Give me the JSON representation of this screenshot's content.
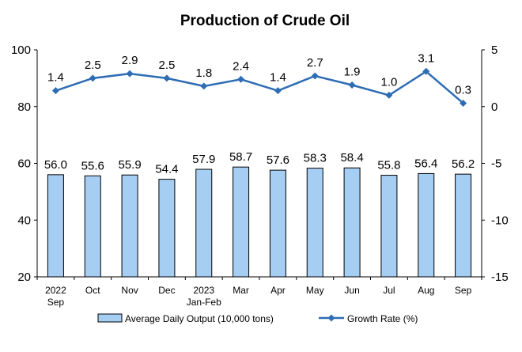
{
  "chart_data": {
    "type": "bar",
    "title": "Production of Crude Oil",
    "categories": [
      [
        "2022",
        "Sep"
      ],
      [
        "Oct"
      ],
      [
        "Nov"
      ],
      [
        "Dec"
      ],
      [
        "2023",
        "Jan-Feb"
      ],
      [
        "Mar"
      ],
      [
        "Apr"
      ],
      [
        "May"
      ],
      [
        "Jun"
      ],
      [
        "Jul"
      ],
      [
        "Aug"
      ],
      [
        "Sep"
      ]
    ],
    "left_axis": {
      "min": 20,
      "max": 100,
      "ticks": [
        20,
        40,
        60,
        80,
        100
      ]
    },
    "right_axis": {
      "min": -15,
      "max": 5,
      "ticks": [
        -15,
        -10,
        -5,
        0,
        5
      ]
    },
    "series": [
      {
        "name": "Average Daily Output (10,000 tons)",
        "kind": "bar",
        "axis": "left",
        "values": [
          56.0,
          55.6,
          55.9,
          54.4,
          57.9,
          58.7,
          57.6,
          58.3,
          58.4,
          55.8,
          56.4,
          56.2
        ],
        "fill": "#a6cdf2",
        "stroke": "#000000"
      },
      {
        "name": "Growth Rate (%)",
        "kind": "line",
        "axis": "right",
        "values": [
          1.4,
          2.5,
          2.9,
          2.5,
          1.8,
          2.4,
          1.4,
          2.7,
          1.9,
          1.0,
          3.1,
          0.3
        ],
        "color": "#2e6db4"
      }
    ],
    "grid": false,
    "legend": "bottom"
  }
}
